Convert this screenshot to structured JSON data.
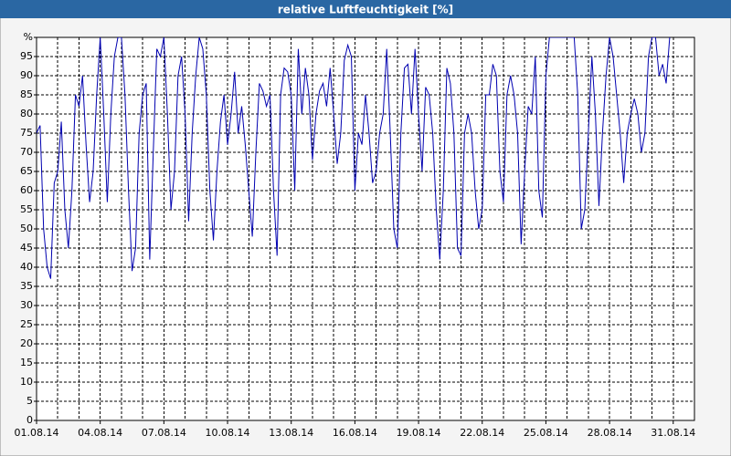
{
  "chart_data": {
    "type": "line",
    "title": "relative Luftfeuchtigkeit [%]",
    "x": [
      0,
      4,
      8,
      12,
      16,
      20,
      24,
      28,
      32,
      36,
      40,
      44,
      48,
      52,
      56,
      60,
      64,
      68,
      72,
      76,
      80,
      84,
      88,
      92,
      96,
      100,
      104,
      108,
      112,
      116,
      120,
      124,
      128,
      132,
      136,
      140,
      144,
      148,
      152,
      156,
      160,
      164,
      168,
      172,
      176,
      180,
      184,
      188,
      192,
      196,
      200,
      204,
      208,
      212,
      216,
      220,
      224,
      228,
      232,
      236,
      240,
      244,
      248,
      252,
      256,
      260,
      264,
      268,
      272,
      276,
      280,
      284,
      288,
      292,
      296,
      300,
      304,
      308,
      312,
      316,
      320,
      324,
      328,
      332,
      336,
      340,
      344,
      348,
      352,
      356,
      360,
      364,
      368,
      372,
      376,
      380,
      384,
      388,
      392,
      396,
      400,
      404,
      408,
      412,
      416,
      420,
      424,
      428,
      432,
      436,
      440,
      444,
      448,
      452,
      456,
      460,
      464,
      468,
      472,
      476,
      480,
      484,
      488,
      492,
      496,
      500,
      504,
      508,
      512,
      516,
      520,
      524,
      528,
      532,
      536,
      540,
      544,
      548,
      552,
      556,
      560,
      564,
      568,
      572,
      576,
      580,
      584,
      588,
      592,
      596,
      600,
      604,
      608,
      612,
      616,
      620,
      624,
      628,
      632,
      636,
      640,
      644,
      648,
      652,
      656,
      660,
      664,
      668,
      672,
      676,
      680,
      684,
      688,
      692,
      696,
      700,
      704,
      708,
      712,
      716
    ],
    "series": [
      {
        "name": "relative Luftfeuchtigkeit",
        "color": "#0000b0",
        "values": [
          75,
          77,
          50,
          40,
          37,
          62,
          65,
          78,
          55,
          45,
          60,
          85,
          82,
          90,
          72,
          57,
          65,
          85,
          100,
          80,
          57,
          80,
          95,
          100,
          100,
          85,
          60,
          39,
          45,
          75,
          85,
          88,
          42,
          70,
          97,
          95,
          100,
          80,
          55,
          65,
          90,
          95,
          80,
          52,
          75,
          90,
          100,
          97,
          85,
          60,
          47,
          65,
          78,
          85,
          72,
          80,
          91,
          75,
          82,
          72,
          60,
          48,
          70,
          88,
          86,
          82,
          85,
          60,
          43,
          85,
          92,
          91,
          85,
          60,
          97,
          80,
          92,
          85,
          68,
          80,
          86,
          88,
          82,
          92,
          80,
          67,
          75,
          94,
          98,
          95,
          60,
          75,
          72,
          85,
          75,
          62,
          65,
          75,
          80,
          97,
          75,
          50,
          45,
          75,
          92,
          93,
          80,
          97,
          80,
          65,
          87,
          85,
          75,
          55,
          42,
          60,
          92,
          88,
          75,
          45,
          43,
          75,
          80,
          75,
          60,
          50,
          55,
          85,
          85,
          93,
          90,
          65,
          57,
          85,
          90,
          85,
          75,
          46,
          65,
          82,
          80,
          95,
          60,
          53,
          90,
          100,
          100,
          100,
          100,
          100,
          100,
          100,
          100,
          85,
          50,
          55,
          75,
          95,
          80,
          56,
          75,
          90,
          100,
          95,
          85,
          75,
          62,
          75,
          80,
          84,
          80,
          70,
          75,
          95,
          100,
          100,
          90,
          93,
          88,
          100
        ]
      }
    ],
    "xlim": [
      0,
      744
    ],
    "xticks": [
      {
        "value": 0,
        "label": "01.08.14"
      },
      {
        "value": 72,
        "label": "04.08.14"
      },
      {
        "value": 144,
        "label": "07.08.14"
      },
      {
        "value": 216,
        "label": "10.08.14"
      },
      {
        "value": 288,
        "label": "13.08.14"
      },
      {
        "value": 360,
        "label": "16.08.14"
      },
      {
        "value": 432,
        "label": "19.08.14"
      },
      {
        "value": 504,
        "label": "22.08.14"
      },
      {
        "value": 576,
        "label": "25.08.14"
      },
      {
        "value": 648,
        "label": "28.08.14"
      },
      {
        "value": 720,
        "label": "31.08.14"
      }
    ],
    "x_grid_step": 24,
    "ylim": [
      0,
      100
    ],
    "yticks": [
      0,
      5,
      10,
      15,
      20,
      25,
      30,
      35,
      40,
      45,
      50,
      55,
      60,
      65,
      70,
      75,
      80,
      85,
      90,
      95,
      {
        "value": 100,
        "label": "%"
      }
    ],
    "grid": true
  }
}
